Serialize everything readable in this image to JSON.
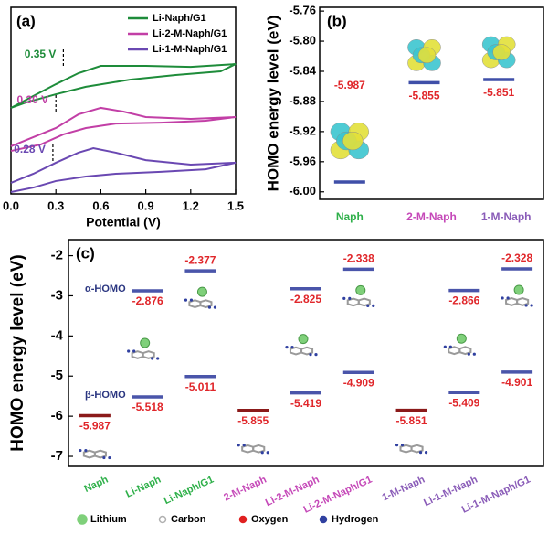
{
  "panels": [
    {
      "chart_data": {
        "type": "line",
        "panel_label": "(a)",
        "xlabel": "Potential (V)",
        "xlim": [
          0,
          1.5
        ],
        "xticks": [
          {
            "value": 0,
            "label": "0.0"
          },
          0.3,
          0.6,
          0.9,
          1.2,
          1.5
        ],
        "ylim": [
          0,
          10
        ],
        "series": [
          {
            "name": "Li-Naph/G1",
            "color": "#1e8c3a",
            "annotation": {
              "text": "0.35 V",
              "x": 0.35
            },
            "x": [
              0,
              0.15,
              0.3,
              0.45,
              0.6,
              0.9,
              1.2,
              1.5,
              1.4,
              1.1,
              0.8,
              0.5,
              0.3,
              0.1,
              0
            ],
            "values": [
              4.61,
              5.25,
              5.88,
              6.47,
              6.86,
              6.86,
              6.81,
              6.96,
              6.57,
              6.37,
              6.13,
              5.74,
              5.34,
              4.9,
              4.61
            ]
          },
          {
            "name": "Li-2-M-Naph/G1",
            "color": "#c23fa6",
            "annotation": {
              "text": "0.30 V",
              "x": 0.3
            },
            "x": [
              0,
              0.15,
              0.3,
              0.45,
              0.6,
              0.75,
              0.9,
              1.2,
              1.5,
              1.3,
              1.0,
              0.7,
              0.5,
              0.35,
              0.2,
              0
            ],
            "values": [
              2.55,
              3.04,
              3.53,
              4.26,
              4.61,
              4.41,
              4.12,
              4.02,
              4.12,
              3.92,
              3.82,
              3.77,
              3.53,
              3.19,
              2.65,
              2.3
            ]
          },
          {
            "name": "Li-1-M-Naph/G1",
            "color": "#6a48b2",
            "annotation": {
              "text": "0.28 V",
              "x": 0.28
            },
            "x": [
              0,
              0.15,
              0.3,
              0.45,
              0.55,
              0.7,
              0.9,
              1.2,
              1.5,
              1.3,
              1.0,
              0.7,
              0.5,
              0.3,
              0.15,
              0
            ],
            "values": [
              0.59,
              1.08,
              1.67,
              2.21,
              2.45,
              2.21,
              1.81,
              1.57,
              1.67,
              1.32,
              1.18,
              1.08,
              0.93,
              0.69,
              0.34,
              0.1
            ]
          }
        ]
      }
    },
    {
      "chart_data": {
        "type": "level",
        "panel_label": "(b)",
        "ylabel": "HOMO energy level (eV)",
        "ylim": [
          -6.01,
          -5.755
        ],
        "yticks": [
          -5.76,
          {
            "value": -5.8,
            "label": "-5.80"
          },
          -5.84,
          -5.88,
          -5.92,
          -5.96,
          {
            "value": -6,
            "label": "-6.00"
          }
        ],
        "categories": [
          "Naph",
          "2-M-Naph",
          "1-M-Naph"
        ],
        "category_colors": [
          "#2fb04a",
          "#c548b8",
          "#8a5cb8"
        ],
        "color": "#3f4fa8",
        "label_color": "#e0262a",
        "values": [
          -5.987,
          -5.855,
          -5.851
        ]
      }
    },
    {
      "chart_data": {
        "type": "level",
        "panel_label": "(c)",
        "ylabel": "HOMO energy level (eV)",
        "ylim": [
          -7.25,
          -1.6
        ],
        "yticks": [
          -2,
          -3,
          -4,
          -5,
          -6,
          -7
        ],
        "categories": [
          "Naph",
          "Li-Naph",
          "Li-Naph/G1",
          "2-M-Naph",
          "Li-2-M-Naph",
          "Li-2-M-Naph/G1",
          "1-M-Naph",
          "Li-1-M-Naph",
          "Li-1-M-Naph/G1"
        ],
        "category_colors": [
          "#2fb04a",
          "#2fb04a",
          "#2fb04a",
          "#c548b8",
          "#c548b8",
          "#c548b8",
          "#8a5cb8",
          "#8a5cb8",
          "#8a5cb8"
        ],
        "label_color": "#e0262a",
        "series": [
          {
            "name": "α-HOMO",
            "color": "#4a55aa",
            "values": [
              null,
              -2.876,
              -2.377,
              null,
              -2.825,
              -2.338,
              null,
              -2.866,
              -2.328
            ]
          },
          {
            "name": "β-HOMO",
            "color": "#4a55aa",
            "values": [
              null,
              -5.518,
              -5.011,
              null,
              -5.419,
              -4.909,
              null,
              -5.409,
              -4.901
            ]
          },
          {
            "color": "#8b1a1a",
            "values": [
              -5.987,
              null,
              null,
              -5.855,
              null,
              null,
              -5.851,
              null,
              null
            ]
          }
        ],
        "atom_legend": [
          {
            "label": "Lithium",
            "color": "#7fd07a"
          },
          {
            "label": "Carbon",
            "color": "#b0b0b0"
          },
          {
            "label": "Oxygen",
            "color": "#e02020"
          },
          {
            "label": "Hydrogen",
            "color": "#3040a0"
          }
        ]
      }
    }
  ]
}
